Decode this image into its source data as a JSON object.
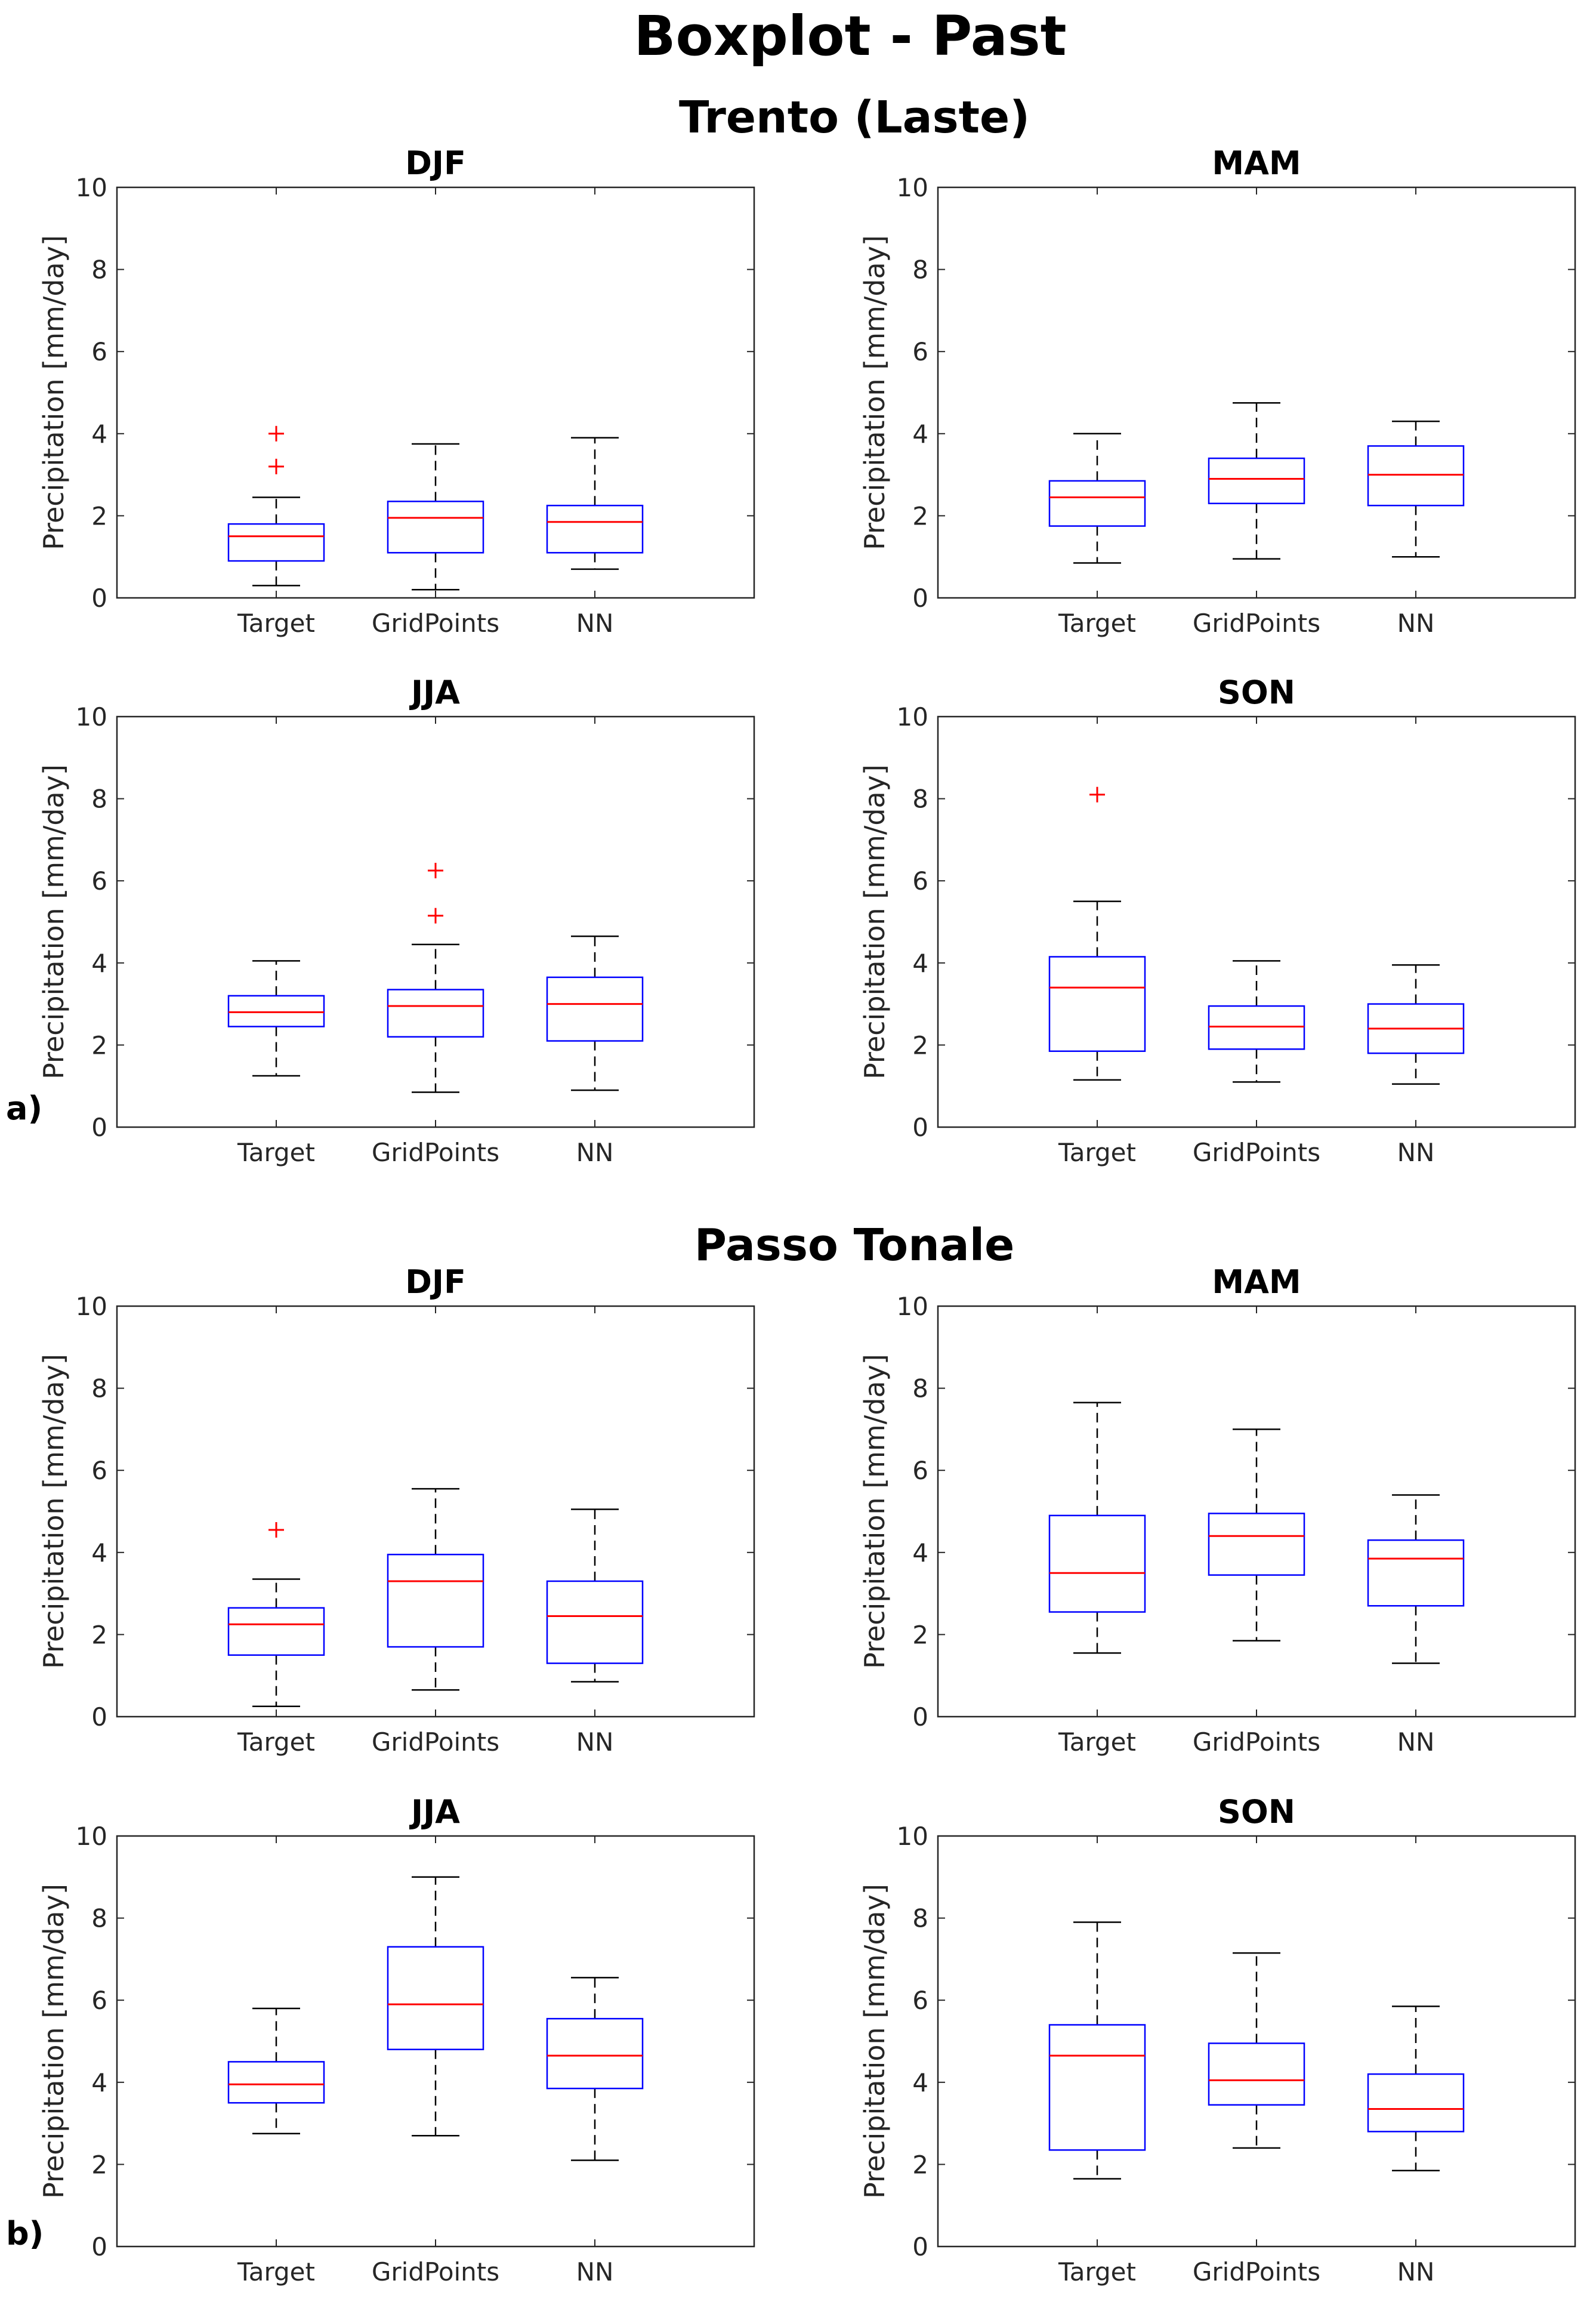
{
  "figure_title": "Boxplot - Past",
  "colors": {
    "box": "#0000ff",
    "median": "#ff0000",
    "whisker": "#000000",
    "outlier": "#ff0000",
    "axis": "#262626"
  },
  "chart_data": [
    {
      "section": "Trento (Laste)",
      "panel_label": "a)",
      "season": "DJF",
      "type": "boxplot",
      "categories": [
        "Target",
        "GridPoints",
        "NN"
      ],
      "ylabel": "Precipitation [mm/day]",
      "ylim": [
        0,
        10
      ],
      "yticks": [
        0,
        2,
        4,
        6,
        8,
        10
      ],
      "boxes": [
        {
          "min": 0.3,
          "q1": 0.9,
          "median": 1.5,
          "q3": 1.8,
          "max": 2.45,
          "outliers": [
            3.2,
            4.0
          ]
        },
        {
          "min": 0.2,
          "q1": 1.1,
          "median": 1.95,
          "q3": 2.35,
          "max": 3.75,
          "outliers": []
        },
        {
          "min": 0.7,
          "q1": 1.1,
          "median": 1.85,
          "q3": 2.25,
          "max": 3.9,
          "outliers": []
        }
      ]
    },
    {
      "section": "Trento (Laste)",
      "panel_label": "",
      "season": "MAM",
      "type": "boxplot",
      "categories": [
        "Target",
        "GridPoints",
        "NN"
      ],
      "ylabel": "Precipitation [mm/day]",
      "ylim": [
        0,
        10
      ],
      "yticks": [
        0,
        2,
        4,
        6,
        8,
        10
      ],
      "boxes": [
        {
          "min": 0.85,
          "q1": 1.75,
          "median": 2.45,
          "q3": 2.85,
          "max": 4.0,
          "outliers": []
        },
        {
          "min": 0.95,
          "q1": 2.3,
          "median": 2.9,
          "q3": 3.4,
          "max": 4.75,
          "outliers": []
        },
        {
          "min": 1.0,
          "q1": 2.25,
          "median": 3.0,
          "q3": 3.7,
          "max": 4.3,
          "outliers": []
        }
      ]
    },
    {
      "section": "Trento (Laste)",
      "panel_label": "a)",
      "season": "JJA",
      "type": "boxplot",
      "categories": [
        "Target",
        "GridPoints",
        "NN"
      ],
      "ylabel": "Precipitation [mm/day]",
      "ylim": [
        0,
        10
      ],
      "yticks": [
        0,
        2,
        4,
        6,
        8,
        10
      ],
      "boxes": [
        {
          "min": 1.25,
          "q1": 2.45,
          "median": 2.8,
          "q3": 3.2,
          "max": 4.05,
          "outliers": []
        },
        {
          "min": 0.85,
          "q1": 2.2,
          "median": 2.95,
          "q3": 3.35,
          "max": 4.45,
          "outliers": [
            5.15,
            6.25
          ]
        },
        {
          "min": 0.9,
          "q1": 2.1,
          "median": 3.0,
          "q3": 3.65,
          "max": 4.65,
          "outliers": []
        }
      ]
    },
    {
      "section": "Trento (Laste)",
      "panel_label": "",
      "season": "SON",
      "type": "boxplot",
      "categories": [
        "Target",
        "GridPoints",
        "NN"
      ],
      "ylabel": "Precipitation [mm/day]",
      "ylim": [
        0,
        10
      ],
      "yticks": [
        0,
        2,
        4,
        6,
        8,
        10
      ],
      "boxes": [
        {
          "min": 1.15,
          "q1": 1.85,
          "median": 3.4,
          "q3": 4.15,
          "max": 5.5,
          "outliers": [
            8.1
          ]
        },
        {
          "min": 1.1,
          "q1": 1.9,
          "median": 2.45,
          "q3": 2.95,
          "max": 4.05,
          "outliers": []
        },
        {
          "min": 1.05,
          "q1": 1.8,
          "median": 2.4,
          "q3": 3.0,
          "max": 3.95,
          "outliers": []
        }
      ]
    },
    {
      "section": "Passo Tonale",
      "panel_label": "b)",
      "season": "DJF",
      "type": "boxplot",
      "categories": [
        "Target",
        "GridPoints",
        "NN"
      ],
      "ylabel": "Precipitation [mm/day]",
      "ylim": [
        0,
        10
      ],
      "yticks": [
        0,
        2,
        4,
        6,
        8,
        10
      ],
      "boxes": [
        {
          "min": 0.25,
          "q1": 1.5,
          "median": 2.25,
          "q3": 2.65,
          "max": 3.35,
          "outliers": [
            4.55
          ]
        },
        {
          "min": 0.65,
          "q1": 1.7,
          "median": 3.3,
          "q3": 3.95,
          "max": 5.55,
          "outliers": []
        },
        {
          "min": 0.85,
          "q1": 1.3,
          "median": 2.45,
          "q3": 3.3,
          "max": 5.05,
          "outliers": []
        }
      ]
    },
    {
      "section": "Passo Tonale",
      "panel_label": "",
      "season": "MAM",
      "type": "boxplot",
      "categories": [
        "Target",
        "GridPoints",
        "NN"
      ],
      "ylabel": "Precipitation [mm/day]",
      "ylim": [
        0,
        10
      ],
      "yticks": [
        0,
        2,
        4,
        6,
        8,
        10
      ],
      "boxes": [
        {
          "min": 1.55,
          "q1": 2.55,
          "median": 3.5,
          "q3": 4.9,
          "max": 7.65,
          "outliers": []
        },
        {
          "min": 1.85,
          "q1": 3.45,
          "median": 4.4,
          "q3": 4.95,
          "max": 7.0,
          "outliers": []
        },
        {
          "min": 1.3,
          "q1": 2.7,
          "median": 3.85,
          "q3": 4.3,
          "max": 5.4,
          "outliers": []
        }
      ]
    },
    {
      "section": "Passo Tonale",
      "panel_label": "b)",
      "season": "JJA",
      "type": "boxplot",
      "categories": [
        "Target",
        "GridPoints",
        "NN"
      ],
      "ylabel": "Precipitation [mm/day]",
      "ylim": [
        0,
        10
      ],
      "yticks": [
        0,
        2,
        4,
        6,
        8,
        10
      ],
      "boxes": [
        {
          "min": 2.75,
          "q1": 3.5,
          "median": 3.95,
          "q3": 4.5,
          "max": 5.8,
          "outliers": []
        },
        {
          "min": 2.7,
          "q1": 4.8,
          "median": 5.9,
          "q3": 7.3,
          "max": 9.0,
          "outliers": []
        },
        {
          "min": 2.1,
          "q1": 3.85,
          "median": 4.65,
          "q3": 5.55,
          "max": 6.55,
          "outliers": []
        }
      ]
    },
    {
      "section": "Passo Tonale",
      "panel_label": "",
      "season": "SON",
      "type": "boxplot",
      "categories": [
        "Target",
        "GridPoints",
        "NN"
      ],
      "ylabel": "Precipitation [mm/day]",
      "ylim": [
        0,
        10
      ],
      "yticks": [
        0,
        2,
        4,
        6,
        8,
        10
      ],
      "boxes": [
        {
          "min": 1.65,
          "q1": 2.35,
          "median": 4.65,
          "q3": 5.4,
          "max": 7.9,
          "outliers": []
        },
        {
          "min": 2.4,
          "q1": 3.45,
          "median": 4.05,
          "q3": 4.95,
          "max": 7.15,
          "outliers": []
        },
        {
          "min": 1.85,
          "q1": 2.8,
          "median": 3.35,
          "q3": 4.2,
          "max": 5.85,
          "outliers": []
        }
      ]
    }
  ]
}
